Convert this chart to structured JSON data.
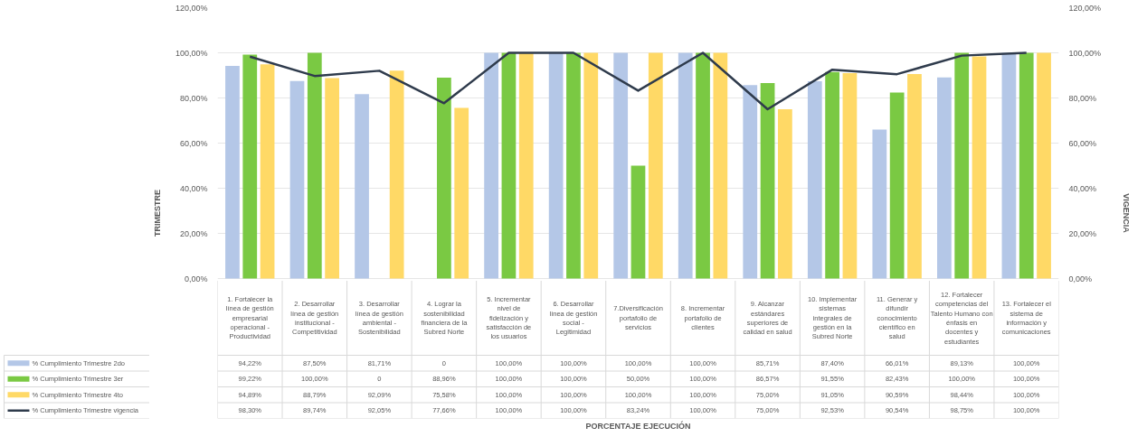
{
  "chart_data": {
    "type": "bar",
    "annotations": [
      "PORCENTAJE EJECUCIÓN"
    ],
    "ylabel": "TRIMESTRE",
    "y2label": "VIGENCIA",
    "categories": [
      "1. Fortalecer la línea de gestión empresarial operacional - Productividad",
      "2. Desarrollar línea de gestión institucional - Competitividad",
      "3. Desarrollar línea de gestión ambiental - Sostenibilidad",
      "4. Lograr la sostenibilidad financiera de la Subred Norte",
      "5. Incrementar nivel de fidelización y satisfacción de los usuarios",
      "6. Desarrollar línea de gestión social - Legitimidad",
      "7.Diversificación portafolio de servicios",
      "8. Incrementar portafolio de clientes",
      "9. Alcanzar estándares superiores de calidad en salud",
      "10. Implementar sistemas integrales de gestión en la Subred Norte",
      "11. Generar y difundir conocimiento científico en salud",
      "12. Fortalecer competencias del Talento Humano con énfasis en docentes y estudiantes",
      "13. Fortalecer el sistema de información y comunicaciones"
    ],
    "series": [
      {
        "name": "% Cumplimiento Trimestre 2do",
        "color": "#b4c7e7",
        "values": [
          94.22,
          87.5,
          81.71,
          0,
          100,
          100,
          100,
          100,
          85.71,
          87.4,
          66.01,
          89.13,
          100
        ],
        "value_labels": [
          "94,22%",
          "87,50%",
          "81,71%",
          "0",
          "100,00%",
          "100,00%",
          "100,00%",
          "100,00%",
          "85,71%",
          "87,40%",
          "66,01%",
          "89,13%",
          "100,00%"
        ]
      },
      {
        "name": "% Cumplimiento Trimestre 3er",
        "color": "#7ac943",
        "values": [
          99.22,
          100,
          0,
          88.96,
          100,
          100,
          50,
          100,
          86.57,
          91.55,
          82.43,
          100,
          100
        ],
        "value_labels": [
          "99,22%",
          "100,00%",
          "0",
          "88,96%",
          "100,00%",
          "100,00%",
          "50,00%",
          "100,00%",
          "86,57%",
          "91,55%",
          "82,43%",
          "100,00%",
          "100,00%"
        ]
      },
      {
        "name": "% Cumplimiento Trimestre 4to",
        "color": "#ffd966",
        "values": [
          94.89,
          88.79,
          92.09,
          75.58,
          100,
          100,
          100,
          100,
          75,
          91.05,
          90.59,
          98.44,
          100
        ],
        "value_labels": [
          "94,89%",
          "88,79%",
          "92,09%",
          "75,58%",
          "100,00%",
          "100,00%",
          "100,00%",
          "100,00%",
          "75,00%",
          "91,05%",
          "90,59%",
          "98,44%",
          "100,00%"
        ]
      },
      {
        "name": "% Cumplimiento Trimestre vigencia",
        "color": "#2f3b4c",
        "type": "line",
        "axis": "y2",
        "values": [
          98.3,
          89.74,
          92.05,
          77.66,
          100,
          100,
          83.24,
          100,
          75,
          92.53,
          90.54,
          98.75,
          100
        ],
        "value_labels": [
          "98,30%",
          "89,74%",
          "92,05%",
          "77,66%",
          "100,00%",
          "100,00%",
          "83,24%",
          "100,00%",
          "75,00%",
          "92,53%",
          "90,54%",
          "98,75%",
          "100,00%"
        ]
      }
    ],
    "ylim": [
      0,
      120
    ],
    "yticks": [
      {
        "value": 0,
        "label": "0,00%"
      },
      {
        "value": 20,
        "label": "20,00%"
      },
      {
        "value": 40,
        "label": "40,00%"
      },
      {
        "value": 60,
        "label": "60,00%"
      },
      {
        "value": 80,
        "label": "80,00%"
      },
      {
        "value": 100,
        "label": "100,00%"
      },
      {
        "value": 120,
        "label": "120,00%"
      }
    ],
    "y2lim": [
      0,
      120
    ],
    "y2ticks": [
      {
        "value": 0,
        "label": "0,00%"
      },
      {
        "value": 20,
        "label": "20,00%"
      },
      {
        "value": 40,
        "label": "40,00%"
      },
      {
        "value": 60,
        "label": "60,00%"
      },
      {
        "value": 80,
        "label": "80,00%"
      },
      {
        "value": 100,
        "label": "100,00%"
      },
      {
        "value": 120,
        "label": "120,00%"
      }
    ],
    "grid": "y",
    "legend": "bottom"
  }
}
